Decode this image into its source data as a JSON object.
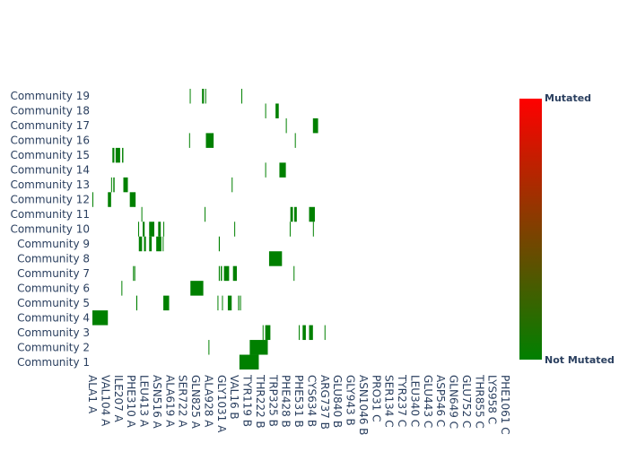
{
  "chart_data": {
    "type": "heatmap",
    "title": "",
    "xlabel": "",
    "ylabel": "",
    "rows": [
      "Community 1",
      "Community 2",
      "Community 3",
      "Community 4",
      "Community 5",
      "Community 6",
      "Community 7",
      "Community 8",
      "Community 9",
      "Community 10",
      "Community 11",
      "Community 12",
      "Community 13",
      "Community 14",
      "Community 15",
      "Community 16",
      "Community 17",
      "Community 18",
      "Community 19"
    ],
    "x_tick_labels": [
      "ALA1 A",
      "VAL104 A",
      "ILE207 A",
      "PHE310 A",
      "LEU413 A",
      "ASN516 A",
      "ALA619 A",
      "SER722 A",
      "GLN825 A",
      "ALA928 A",
      "GLY1031 A",
      "VAL16 B",
      "TYR119 B",
      "THR222 B",
      "TRP325 B",
      "PHE428 B",
      "PHE531 B",
      "CYS634 B",
      "ARG737 B",
      "GLU840 B",
      "GLY943 B",
      "ASN1046 B",
      "PRO31 C",
      "SER134 C",
      "TYR237 C",
      "LEU340 C",
      "GLU443 C",
      "ASP546 C",
      "GLN649 C",
      "GLU752 C",
      "THR855 C",
      "LYS958 C",
      "PHE1061 C"
    ],
    "x_range": [
      0,
      32
    ],
    "value_meaning": {
      "0": "Not Mutated",
      "1": "Mutated"
    },
    "colorscale": [
      "#008000",
      "#ff0000"
    ],
    "colorbar": {
      "top_label": "Mutated",
      "bottom_label": "Not Mutated"
    },
    "mutated_segments": [
      {
        "row": "Community 1",
        "ranges": [
          [
            11.4,
            12.9
          ]
        ]
      },
      {
        "row": "Community 2",
        "ranges": [
          [
            9.0,
            9.04
          ],
          [
            12.2,
            13.6
          ]
        ]
      },
      {
        "row": "Community 3",
        "ranges": [
          [
            13.2,
            13.25
          ],
          [
            13.4,
            13.8
          ],
          [
            16.0,
            16.04
          ],
          [
            16.3,
            16.55
          ],
          [
            16.8,
            17.1
          ],
          [
            18.0,
            18.05
          ]
        ]
      },
      {
        "row": "Community 4",
        "ranges": [
          [
            0.0,
            1.2
          ]
        ]
      },
      {
        "row": "Community 5",
        "ranges": [
          [
            3.4,
            3.48
          ],
          [
            5.5,
            5.95
          ],
          [
            9.7,
            9.75
          ],
          [
            10.05,
            10.1
          ],
          [
            10.5,
            10.8
          ],
          [
            11.3,
            11.38
          ],
          [
            11.45,
            11.5
          ]
        ]
      },
      {
        "row": "Community 6",
        "ranges": [
          [
            2.25,
            2.32
          ],
          [
            7.6,
            8.6
          ]
        ]
      },
      {
        "row": "Community 7",
        "ranges": [
          [
            3.15,
            3.2
          ],
          [
            3.25,
            3.3
          ],
          [
            9.8,
            9.88
          ],
          [
            9.95,
            10.05
          ],
          [
            10.2,
            10.6
          ],
          [
            10.9,
            11.2
          ],
          [
            15.6,
            15.65
          ]
        ]
      },
      {
        "row": "Community 8",
        "ranges": [
          [
            13.7,
            14.7
          ]
        ]
      },
      {
        "row": "Community 9",
        "ranges": [
          [
            3.6,
            3.85
          ],
          [
            4.0,
            4.15
          ],
          [
            4.4,
            4.6
          ],
          [
            4.95,
            5.35
          ],
          [
            5.45,
            5.5
          ],
          [
            9.8,
            9.88
          ]
        ]
      },
      {
        "row": "Community 10",
        "ranges": [
          [
            3.55,
            3.6
          ],
          [
            3.9,
            4.05
          ],
          [
            4.4,
            4.8
          ],
          [
            5.1,
            5.3
          ],
          [
            5.5,
            5.55
          ],
          [
            11.0,
            11.04
          ],
          [
            15.3,
            15.35
          ],
          [
            17.1,
            17.15
          ]
        ]
      },
      {
        "row": "Community 11",
        "ranges": [
          [
            3.8,
            3.85
          ],
          [
            8.7,
            8.75
          ],
          [
            15.35,
            15.55
          ],
          [
            15.65,
            15.85
          ],
          [
            16.8,
            17.25
          ]
        ]
      },
      {
        "row": "Community 12",
        "ranges": [
          [
            0.0,
            0.05
          ],
          [
            1.2,
            1.45
          ],
          [
            2.9,
            3.35
          ]
        ]
      },
      {
        "row": "Community 13",
        "ranges": [
          [
            1.45,
            1.52
          ],
          [
            1.62,
            1.72
          ],
          [
            2.4,
            2.75
          ],
          [
            10.8,
            10.85
          ]
        ]
      },
      {
        "row": "Community 14",
        "ranges": [
          [
            13.4,
            13.45
          ],
          [
            14.5,
            15.0
          ]
        ]
      },
      {
        "row": "Community 15",
        "ranges": [
          [
            1.55,
            1.7
          ],
          [
            1.8,
            2.15
          ],
          [
            2.3,
            2.4
          ]
        ]
      },
      {
        "row": "Community 16",
        "ranges": [
          [
            7.5,
            7.55
          ],
          [
            8.8,
            9.4
          ],
          [
            15.7,
            15.75
          ]
        ]
      },
      {
        "row": "Community 17",
        "ranges": [
          [
            15.0,
            15.04
          ],
          [
            17.1,
            17.5
          ]
        ]
      },
      {
        "row": "Community 18",
        "ranges": [
          [
            13.4,
            13.45
          ],
          [
            14.2,
            14.45
          ]
        ]
      },
      {
        "row": "Community 19",
        "ranges": [
          [
            7.55,
            7.6
          ],
          [
            8.5,
            8.65
          ],
          [
            8.75,
            8.8
          ],
          [
            11.55,
            11.6
          ]
        ]
      }
    ]
  }
}
